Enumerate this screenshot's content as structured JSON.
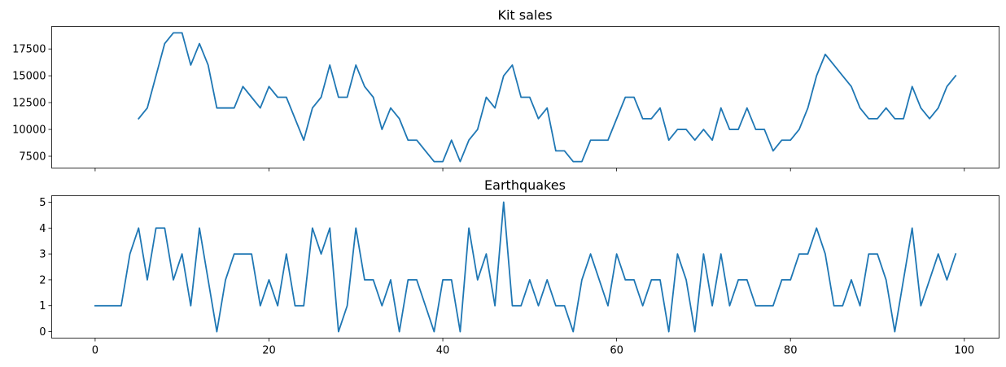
{
  "colors": {
    "series": "#1f77b4",
    "axis": "#000000",
    "background": "#ffffff"
  },
  "chart_data": [
    {
      "type": "line",
      "title": "Kit sales",
      "xlabel": "",
      "ylabel": "",
      "xlim": [
        -5,
        104
      ],
      "ylim": [
        6400,
        19600
      ],
      "xticks": [
        0,
        20,
        40,
        60,
        80,
        100
      ],
      "show_xtick_labels": false,
      "yticks": [
        7500,
        10000,
        12500,
        15000,
        17500
      ],
      "grid": false,
      "legend": "none",
      "series": [
        {
          "x": [
            5,
            6,
            7,
            8,
            9,
            10,
            11,
            12,
            13,
            14,
            15,
            16,
            17,
            18,
            19,
            20,
            21,
            22,
            23,
            24,
            25,
            26,
            27,
            28,
            29,
            30,
            31,
            32,
            33,
            34,
            35,
            36,
            37,
            38,
            39,
            40,
            41,
            42,
            43,
            44,
            45,
            46,
            47,
            48,
            49,
            50,
            51,
            52,
            53,
            54,
            55,
            56,
            57,
            58,
            59,
            60,
            61,
            62,
            63,
            64,
            65,
            66,
            67,
            68,
            69,
            70,
            71,
            72,
            73,
            74,
            75,
            76,
            77,
            78,
            79,
            80,
            81,
            82,
            83,
            84,
            85,
            86,
            87,
            88,
            89,
            90,
            91,
            92,
            93,
            94,
            95,
            96,
            97,
            98,
            99
          ],
          "values": [
            11000,
            12000,
            15000,
            18000,
            19000,
            19000,
            16000,
            18000,
            16000,
            12000,
            12000,
            12000,
            14000,
            13000,
            12000,
            14000,
            13000,
            13000,
            11000,
            9000,
            12000,
            13000,
            16000,
            13000,
            13000,
            16000,
            14000,
            13000,
            10000,
            12000,
            11000,
            9000,
            9000,
            8000,
            7000,
            7000,
            9000,
            7000,
            9000,
            10000,
            13000,
            12000,
            15000,
            16000,
            13000,
            13000,
            11000,
            12000,
            8000,
            8000,
            7000,
            7000,
            9000,
            9000,
            9000,
            11000,
            13000,
            13000,
            11000,
            11000,
            12000,
            9000,
            10000,
            10000,
            9000,
            10000,
            9000,
            12000,
            10000,
            10000,
            12000,
            10000,
            10000,
            8000,
            9000,
            9000,
            10000,
            12000,
            15000,
            17000,
            16000,
            15000,
            14000,
            12000,
            11000,
            11000,
            12000,
            11000,
            11000,
            14000,
            12000,
            11000,
            12000,
            14000,
            15000
          ]
        }
      ]
    },
    {
      "type": "line",
      "title": "Earthquakes",
      "xlabel": "",
      "ylabel": "",
      "xlim": [
        -5,
        104
      ],
      "ylim": [
        -0.25,
        5.25
      ],
      "xticks": [
        0,
        20,
        40,
        60,
        80,
        100
      ],
      "xtick_labels": [
        "0",
        "20",
        "40",
        "60",
        "80",
        "100"
      ],
      "show_xtick_labels": true,
      "yticks": [
        0,
        1,
        2,
        3,
        4,
        5
      ],
      "grid": false,
      "legend": "none",
      "series": [
        {
          "x": [
            0,
            1,
            2,
            3,
            4,
            5,
            6,
            7,
            8,
            9,
            10,
            11,
            12,
            13,
            14,
            15,
            16,
            17,
            18,
            19,
            20,
            21,
            22,
            23,
            24,
            25,
            26,
            27,
            28,
            29,
            30,
            31,
            32,
            33,
            34,
            35,
            36,
            37,
            38,
            39,
            40,
            41,
            42,
            43,
            44,
            45,
            46,
            47,
            48,
            49,
            50,
            51,
            52,
            53,
            54,
            55,
            56,
            57,
            58,
            59,
            60,
            61,
            62,
            63,
            64,
            65,
            66,
            67,
            68,
            69,
            70,
            71,
            72,
            73,
            74,
            75,
            76,
            77,
            78,
            79,
            80,
            81,
            82,
            83,
            84,
            85,
            86,
            87,
            88,
            89,
            90,
            91,
            92,
            93,
            94,
            95,
            96,
            97,
            98,
            99
          ],
          "values": [
            1,
            1,
            1,
            1,
            3,
            4,
            2,
            4,
            4,
            2,
            3,
            1,
            4,
            2,
            0,
            2,
            3,
            3,
            3,
            1,
            2,
            1,
            3,
            1,
            1,
            4,
            3,
            4,
            0,
            1,
            4,
            2,
            2,
            1,
            2,
            0,
            2,
            2,
            1,
            0,
            2,
            2,
            0,
            4,
            2,
            3,
            1,
            5,
            1,
            1,
            2,
            1,
            2,
            1,
            1,
            0,
            2,
            3,
            2,
            1,
            3,
            2,
            2,
            1,
            2,
            2,
            0,
            3,
            2,
            0,
            3,
            1,
            3,
            1,
            2,
            2,
            1,
            1,
            1,
            2,
            2,
            3,
            3,
            4,
            3,
            1,
            1,
            2,
            1,
            3,
            3,
            2,
            0,
            2,
            4,
            1,
            2,
            3,
            2,
            3
          ]
        }
      ]
    }
  ]
}
